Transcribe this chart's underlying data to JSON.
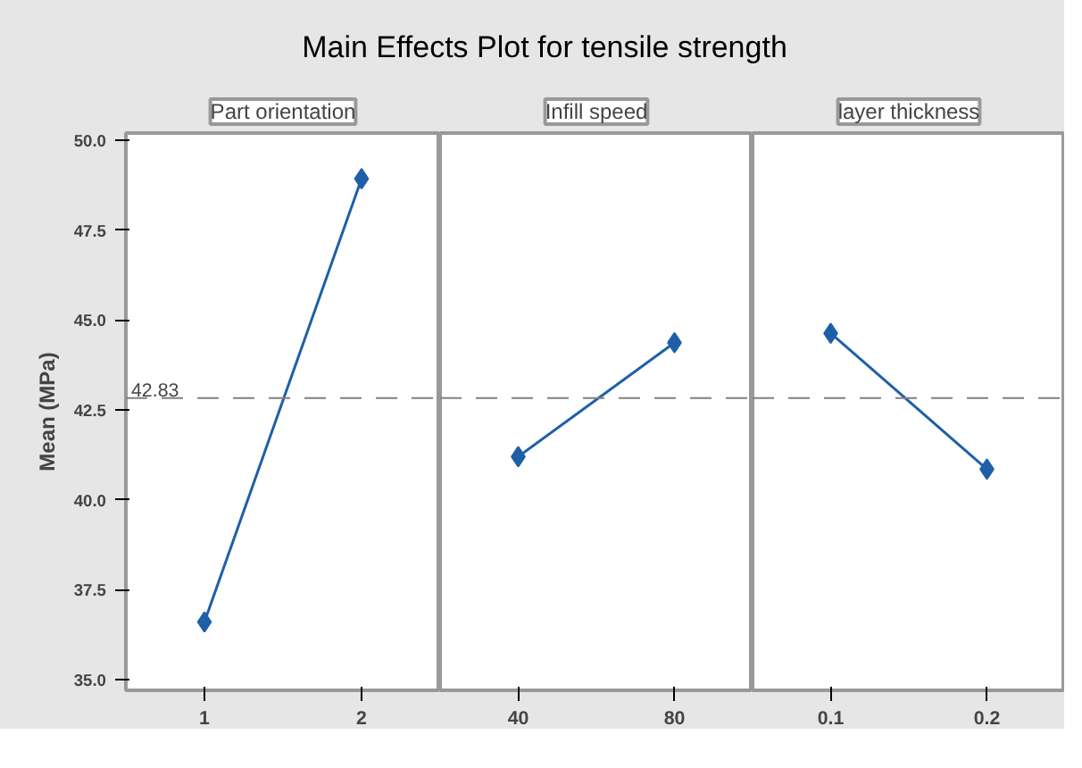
{
  "chart_data": [
    {
      "type": "line",
      "title": "Main Effects Plot for tensile strength",
      "subtitle": "Part orientation",
      "ylabel": "Mean (MPa)",
      "categories": [
        "1",
        "2"
      ],
      "series": [
        {
          "color": "#1f5fa8",
          "values": [
            36.6,
            48.93
          ]
        }
      ],
      "ylim": [
        34.7,
        50.2
      ],
      "yticks": [
        {
          "value": 35,
          "label": "35.0"
        },
        {
          "value": 37.5,
          "label": "37.5"
        },
        {
          "value": 40,
          "label": "40.0"
        },
        {
          "value": 42.5,
          "label": "42.5"
        },
        {
          "value": 45,
          "label": "45.0"
        },
        {
          "value": 47.5,
          "label": "47.5"
        },
        {
          "value": 50,
          "label": "50.0"
        }
      ],
      "ref_lines": [
        {
          "axis": "y",
          "value": 42.83,
          "label": "42.83",
          "color": "#808080",
          "line_style": "dashed"
        }
      ],
      "marker": "diamond",
      "line_style": "solid",
      "grid": false
    },
    {
      "type": "line",
      "subtitle": "Infill speed",
      "categories": [
        "40",
        "80"
      ],
      "series": [
        {
          "color": "#1f5fa8",
          "values": [
            41.2,
            44.37
          ]
        }
      ],
      "ylim": [
        34.7,
        50.2
      ],
      "tick_labels": "x",
      "ref_lines": [
        {
          "axis": "y",
          "value": 42.83,
          "color": "#808080",
          "line_style": "dashed"
        }
      ],
      "marker": "diamond",
      "line_style": "solid",
      "grid": false
    },
    {
      "type": "line",
      "subtitle": "layer thickness",
      "categories": [
        "0.1",
        "0.2"
      ],
      "series": [
        {
          "color": "#1f5fa8",
          "values": [
            44.63,
            40.85
          ]
        }
      ],
      "ylim": [
        34.7,
        50.2
      ],
      "tick_labels": "x",
      "ref_lines": [
        {
          "axis": "y",
          "value": 42.83,
          "color": "#808080",
          "line_style": "dashed"
        }
      ],
      "marker": "diamond",
      "line_style": "solid",
      "grid": false
    }
  ]
}
